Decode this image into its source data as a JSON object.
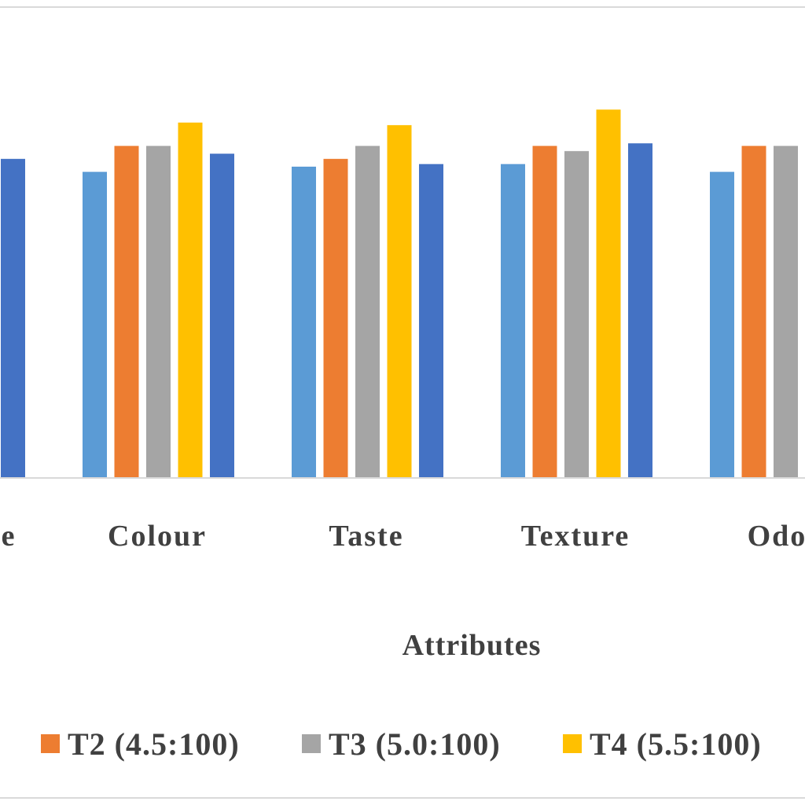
{
  "chart_data": {
    "type": "bar",
    "xlabel": "Attributes",
    "ylabel": "",
    "ylim": [
      0,
      9
    ],
    "grid": false,
    "legend_position": "bottom",
    "categories": [
      "Appearance",
      "Colour",
      "Taste",
      "Texture",
      "Odour"
    ],
    "visible_category_text": [
      "nce",
      "Colour",
      "Taste",
      "Texture",
      "Odou"
    ],
    "series": [
      {
        "name": "",
        "color": "#5b9bd5",
        "values": [
          null,
          5.9,
          6.0,
          6.05,
          5.9
        ]
      },
      {
        "name": "T2 (4.5:100)",
        "color": "#ed7d31",
        "values": [
          null,
          6.4,
          6.15,
          6.4,
          6.4
        ]
      },
      {
        "name": "T3 (5.0:100)",
        "color": "#a5a5a5",
        "values": [
          null,
          6.4,
          6.4,
          6.3,
          6.4
        ]
      },
      {
        "name": "T4 (5.5:100)",
        "color": "#ffc000",
        "values": [
          null,
          6.85,
          6.8,
          7.1,
          null
        ]
      },
      {
        "name": "",
        "color": "#4472c4",
        "values": [
          6.15,
          6.25,
          6.05,
          6.45,
          null
        ]
      }
    ]
  }
}
